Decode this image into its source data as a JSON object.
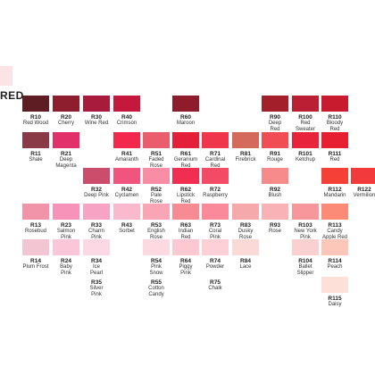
{
  "section": {
    "title": "RED"
  },
  "swatches": [
    {
      "code": "R10",
      "name": "Red Wood",
      "color": "#5e1d22"
    },
    {
      "code": "R20",
      "name": "Cherry",
      "color": "#8e1d2d"
    },
    {
      "code": "R30",
      "name": "Wine Red",
      "color": "#a91b3c"
    },
    {
      "code": "R40",
      "name": "Crimson",
      "color": "#c4193d"
    },
    {
      "code": "R60",
      "name": "Maroon",
      "color": "#8f1c2b"
    },
    {
      "code": "R90",
      "name": "Deep\nRed",
      "color": "#a3202a"
    },
    {
      "code": "R100",
      "name": "Red\nSweater",
      "color": "#bb1f33"
    },
    {
      "code": "R110",
      "name": "Bloody\nRed",
      "color": "#c81c2e"
    },
    {
      "code": "R11",
      "name": "Shale",
      "color": "#8a3947"
    },
    {
      "code": "R21",
      "name": "Deep\nMagenta",
      "color": "#e2306a"
    },
    {
      "code": "R41",
      "name": "Amaranth",
      "color": "#f2284d"
    },
    {
      "code": "R51",
      "name": "Faded\nRose",
      "color": "#e95d6c"
    },
    {
      "code": "R61",
      "name": "Geranium\nRed",
      "color": "#e31f3a"
    },
    {
      "code": "R71",
      "name": "Cardinal\nRed",
      "color": "#f0364b"
    },
    {
      "code": "R81",
      "name": "Firebrick",
      "color": "#d46a5c"
    },
    {
      "code": "R91",
      "name": "Rouge",
      "color": "#f04d55"
    },
    {
      "code": "R101",
      "name": "Ketchup",
      "color": "#e8233c"
    },
    {
      "code": "R111",
      "name": "Red",
      "color": "#e62031"
    },
    {
      "code": "R32",
      "name": "Deep Pink",
      "color": "#cb4d6b"
    },
    {
      "code": "R42",
      "name": "Cyclamen",
      "color": "#f25480"
    },
    {
      "code": "R52",
      "name": "Pale\nRose",
      "color": "#f98da6"
    },
    {
      "code": "R62",
      "name": "Lipstick\nRed",
      "color": "#f22d52"
    },
    {
      "code": "R72",
      "name": "Raspberry",
      "color": "#f34b66"
    },
    {
      "code": "R92",
      "name": "Blush",
      "color": "#f78a8b"
    },
    {
      "code": "R112",
      "name": "Mandarin",
      "color": "#f44036"
    },
    {
      "code": "R122",
      "name": "Vermilion",
      "color": "#f2393c"
    },
    {
      "code": "R13",
      "name": "Rosebud",
      "color": "#f294a9"
    },
    {
      "code": "R23",
      "name": "Salmon\nPink",
      "color": "#f793b9"
    },
    {
      "code": "R33",
      "name": "Charm\nPink",
      "color": "#f7a3c4"
    },
    {
      "code": "R43",
      "name": "Sorbet",
      "color": "#fbb9cd"
    },
    {
      "code": "R53",
      "name": "English\nRose",
      "color": "#f9a5b6"
    },
    {
      "code": "R63",
      "name": "Indian\nRed",
      "color": "#f68b93"
    },
    {
      "code": "R73",
      "name": "Coral\nPink",
      "color": "#fa8a99"
    },
    {
      "code": "R83",
      "name": "Dusky\nRose",
      "color": "#f6a9aa"
    },
    {
      "code": "R93",
      "name": "Rose",
      "color": "#f9b2b5"
    },
    {
      "code": "R103",
      "name": "New York\nPink",
      "color": "#f7979c"
    },
    {
      "code": "R113",
      "name": "Candy\nApple Red",
      "color": "#fb8b77"
    },
    {
      "code": "R14",
      "name": "Plum Frost",
      "color": "#f3c4d1"
    },
    {
      "code": "R24",
      "name": "Baby\nPink",
      "color": "#fbc6d8"
    },
    {
      "code": "R34",
      "name": "Ice\nPearl",
      "color": "#fcd7e4"
    },
    {
      "code": "R54",
      "name": "Pink\nSnow",
      "color": "#fdd9e2"
    },
    {
      "code": "R64",
      "name": "Piggy\nPink",
      "color": "#fcc9d2"
    },
    {
      "code": "R74",
      "name": "Powder",
      "color": "#fcd0d6"
    },
    {
      "code": "R84",
      "name": "Lace",
      "color": "#fad9d7"
    },
    {
      "code": "R104",
      "name": "Ballet\nSlipper",
      "color": "#fbd0d0"
    },
    {
      "code": "R114",
      "name": "Peach",
      "color": "#fcc6b9"
    },
    {
      "code": "R35",
      "name": "Silver\nPink",
      "color": "#ffffff"
    },
    {
      "code": "R55",
      "name": "Cotton\nCandy",
      "color": "#ffffff"
    },
    {
      "code": "R75",
      "name": "Chalk",
      "color": "#ffffff"
    },
    {
      "code": "R115",
      "name": "Daisy",
      "color": "#fde1d8"
    }
  ]
}
